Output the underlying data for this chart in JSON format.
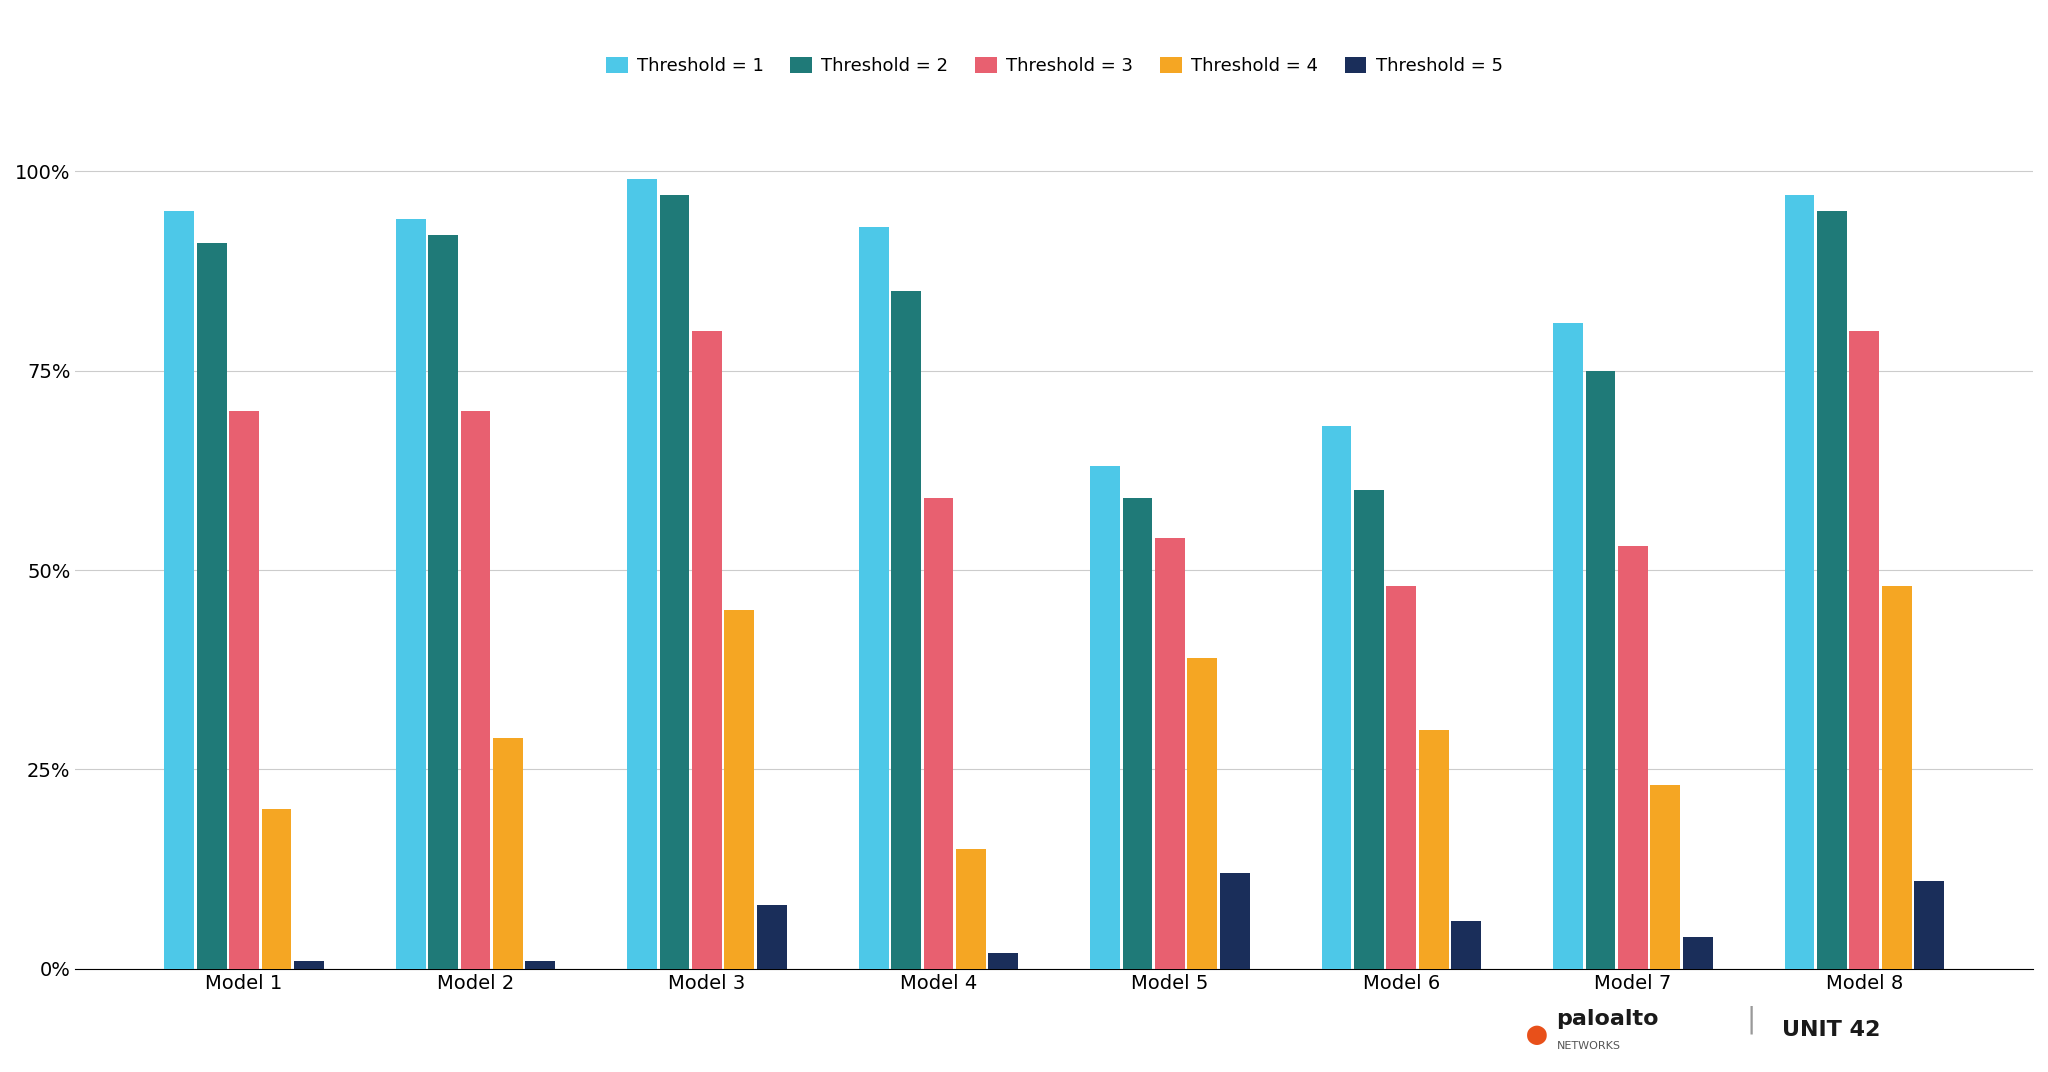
{
  "models": [
    "Model 1",
    "Model 2",
    "Model 3",
    "Model 4",
    "Model 5",
    "Model 6",
    "Model 7",
    "Model 8"
  ],
  "thresholds": [
    "Threshold = 1",
    "Threshold = 2",
    "Threshold = 3",
    "Threshold = 4",
    "Threshold = 5"
  ],
  "values": {
    "Threshold = 1": [
      0.95,
      0.94,
      0.99,
      0.93,
      0.63,
      0.68,
      0.81,
      0.97
    ],
    "Threshold = 2": [
      0.91,
      0.92,
      0.97,
      0.85,
      0.59,
      0.6,
      0.75,
      0.95
    ],
    "Threshold = 3": [
      0.7,
      0.7,
      0.8,
      0.59,
      0.54,
      0.48,
      0.53,
      0.8
    ],
    "Threshold = 4": [
      0.2,
      0.29,
      0.45,
      0.15,
      0.39,
      0.3,
      0.23,
      0.48
    ],
    "Threshold = 5": [
      0.01,
      0.01,
      0.08,
      0.02,
      0.12,
      0.06,
      0.04,
      0.11
    ]
  },
  "colors": {
    "Threshold = 1": "#4DC8E8",
    "Threshold = 2": "#1F7A78",
    "Threshold = 3": "#E86070",
    "Threshold = 4": "#F5A623",
    "Threshold = 5": "#1A2E5A"
  },
  "background_color": "#FFFFFF",
  "grid_color": "#CCCCCC",
  "title_fontsize": 14,
  "tick_fontsize": 14,
  "legend_fontsize": 13,
  "bar_width": 0.14,
  "ylim": [
    0,
    1.05
  ],
  "yticks": [
    0,
    0.25,
    0.5,
    0.75,
    1.0
  ]
}
